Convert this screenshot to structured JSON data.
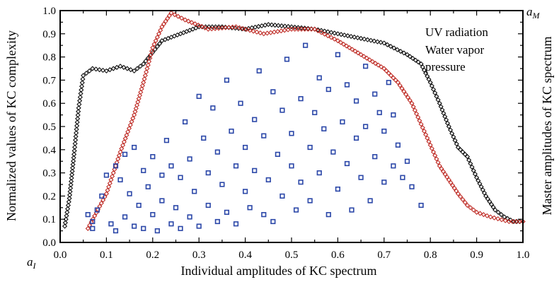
{
  "chart_data": {
    "type": "scatter",
    "xlabel": "Individual amplitudes of KC spectrum",
    "ylabel": "Normalized values of KC complexity",
    "y2label": "Master amplitudes of KC spectrum",
    "xlim": [
      0.0,
      1.0
    ],
    "ylim": [
      0.0,
      1.0
    ],
    "xticks": [
      "0.0",
      "0.1",
      "0.2",
      "0.3",
      "0.4",
      "0.5",
      "0.6",
      "0.7",
      "0.8",
      "0.9",
      "1.0"
    ],
    "yticks": [
      "0.0",
      "0.1",
      "0.2",
      "0.3",
      "0.4",
      "0.5",
      "0.6",
      "0.7",
      "0.8",
      "0.9",
      "1.0"
    ],
    "corner_labels": {
      "bottom_left": "a_I",
      "top_right": "a_M"
    },
    "grid": false,
    "legend_position": "top-right",
    "legend_entries": [
      "UV radiation",
      "Water vapor",
      "pressure"
    ],
    "colors": {
      "black_series": "#111111",
      "red_series": "#c0302a",
      "blue_series": "#2b47a8"
    },
    "series": [
      {
        "color_key": "black_series",
        "marker": "diamond",
        "envelope": [
          [
            0.01,
            0.07
          ],
          [
            0.02,
            0.19
          ],
          [
            0.03,
            0.38
          ],
          [
            0.04,
            0.58
          ],
          [
            0.05,
            0.72
          ],
          [
            0.07,
            0.75
          ],
          [
            0.1,
            0.74
          ],
          [
            0.13,
            0.76
          ],
          [
            0.16,
            0.74
          ],
          [
            0.18,
            0.77
          ],
          [
            0.2,
            0.82
          ],
          [
            0.22,
            0.87
          ],
          [
            0.26,
            0.9
          ],
          [
            0.3,
            0.93
          ],
          [
            0.35,
            0.93
          ],
          [
            0.4,
            0.92
          ],
          [
            0.45,
            0.94
          ],
          [
            0.5,
            0.93
          ],
          [
            0.55,
            0.92
          ],
          [
            0.6,
            0.9
          ],
          [
            0.65,
            0.88
          ],
          [
            0.7,
            0.86
          ],
          [
            0.75,
            0.81
          ],
          [
            0.78,
            0.77
          ],
          [
            0.8,
            0.69
          ],
          [
            0.82,
            0.6
          ],
          [
            0.84,
            0.5
          ],
          [
            0.86,
            0.41
          ],
          [
            0.88,
            0.37
          ],
          [
            0.9,
            0.28
          ],
          [
            0.92,
            0.2
          ],
          [
            0.94,
            0.14
          ],
          [
            0.96,
            0.11
          ],
          [
            0.98,
            0.09
          ],
          [
            1.0,
            0.09
          ]
        ]
      },
      {
        "color_key": "red_series",
        "marker": "diamond",
        "envelope": [
          [
            0.06,
            0.06
          ],
          [
            0.1,
            0.21
          ],
          [
            0.13,
            0.39
          ],
          [
            0.16,
            0.55
          ],
          [
            0.18,
            0.69
          ],
          [
            0.2,
            0.84
          ],
          [
            0.22,
            0.93
          ],
          [
            0.24,
            0.99
          ],
          [
            0.27,
            0.96
          ],
          [
            0.32,
            0.92
          ],
          [
            0.38,
            0.93
          ],
          [
            0.44,
            0.9
          ],
          [
            0.5,
            0.92
          ],
          [
            0.55,
            0.92
          ],
          [
            0.6,
            0.87
          ],
          [
            0.65,
            0.81
          ],
          [
            0.7,
            0.75
          ],
          [
            0.73,
            0.69
          ],
          [
            0.76,
            0.6
          ],
          [
            0.78,
            0.51
          ],
          [
            0.8,
            0.42
          ],
          [
            0.82,
            0.33
          ],
          [
            0.84,
            0.27
          ],
          [
            0.86,
            0.21
          ],
          [
            0.88,
            0.16
          ],
          [
            0.9,
            0.13
          ],
          [
            0.93,
            0.11
          ],
          [
            0.97,
            0.09
          ],
          [
            1.0,
            0.09
          ]
        ]
      },
      {
        "color_key": "blue_series",
        "marker": "square",
        "x": [
          0.06,
          0.07,
          0.07,
          0.08,
          0.09,
          0.1,
          0.11,
          0.12,
          0.12,
          0.13,
          0.14,
          0.14,
          0.15,
          0.16,
          0.16,
          0.17,
          0.18,
          0.18,
          0.19,
          0.2,
          0.2,
          0.21,
          0.22,
          0.22,
          0.23,
          0.24,
          0.24,
          0.25,
          0.26,
          0.26,
          0.27,
          0.28,
          0.28,
          0.29,
          0.3,
          0.3,
          0.31,
          0.32,
          0.32,
          0.33,
          0.34,
          0.34,
          0.35,
          0.36,
          0.36,
          0.37,
          0.38,
          0.38,
          0.39,
          0.4,
          0.4,
          0.41,
          0.42,
          0.42,
          0.43,
          0.44,
          0.44,
          0.45,
          0.46,
          0.46,
          0.47,
          0.48,
          0.48,
          0.49,
          0.5,
          0.5,
          0.51,
          0.52,
          0.52,
          0.53,
          0.54,
          0.54,
          0.55,
          0.56,
          0.56,
          0.57,
          0.58,
          0.58,
          0.59,
          0.6,
          0.6,
          0.61,
          0.62,
          0.62,
          0.63,
          0.64,
          0.64,
          0.65,
          0.66,
          0.66,
          0.67,
          0.68,
          0.68,
          0.69,
          0.7,
          0.7,
          0.71,
          0.72,
          0.72,
          0.73,
          0.74,
          0.75,
          0.76,
          0.78
        ],
        "y": [
          0.12,
          0.09,
          0.06,
          0.14,
          0.2,
          0.29,
          0.08,
          0.33,
          0.05,
          0.27,
          0.11,
          0.38,
          0.21,
          0.07,
          0.41,
          0.16,
          0.31,
          0.06,
          0.24,
          0.12,
          0.37,
          0.05,
          0.29,
          0.18,
          0.44,
          0.08,
          0.33,
          0.15,
          0.06,
          0.28,
          0.52,
          0.11,
          0.36,
          0.22,
          0.63,
          0.07,
          0.45,
          0.3,
          0.16,
          0.58,
          0.09,
          0.39,
          0.25,
          0.7,
          0.13,
          0.48,
          0.33,
          0.08,
          0.6,
          0.22,
          0.41,
          0.15,
          0.53,
          0.31,
          0.74,
          0.12,
          0.46,
          0.27,
          0.65,
          0.09,
          0.38,
          0.57,
          0.2,
          0.79,
          0.33,
          0.47,
          0.14,
          0.62,
          0.26,
          0.85,
          0.41,
          0.18,
          0.56,
          0.71,
          0.3,
          0.49,
          0.12,
          0.66,
          0.39,
          0.81,
          0.23,
          0.52,
          0.34,
          0.68,
          0.14,
          0.45,
          0.61,
          0.28,
          0.76,
          0.5,
          0.18,
          0.64,
          0.37,
          0.56,
          0.26,
          0.48,
          0.69,
          0.33,
          0.55,
          0.42,
          0.28,
          0.35,
          0.24,
          0.16
        ]
      }
    ]
  }
}
